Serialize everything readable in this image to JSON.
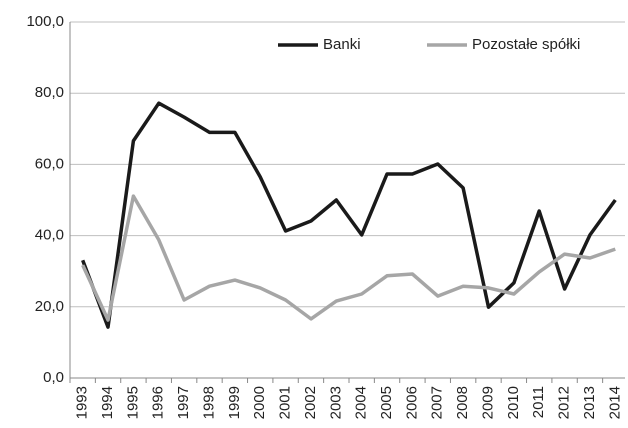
{
  "chart_data": {
    "type": "line",
    "categories": [
      "1993",
      "1994",
      "1995",
      "1996",
      "1997",
      "1998",
      "1999",
      "2000",
      "2001",
      "2002",
      "2003",
      "2004",
      "2005",
      "2006",
      "2007",
      "2008",
      "2009",
      "2010",
      "2011",
      "2012",
      "2013",
      "2014"
    ],
    "series": [
      {
        "name": "Banki",
        "color": "#1a1a1a",
        "values": [
          33.1,
          14.3,
          66.6,
          77.2,
          73.3,
          69.0,
          69.0,
          56.5,
          41.3,
          44.1,
          50.0,
          40.2,
          57.3,
          57.3,
          60.1,
          53.4,
          19.9,
          26.7,
          46.9,
          25.0,
          40.2,
          50.0
        ]
      },
      {
        "name": "Pozostałe spółki",
        "color": "#a6a6a6",
        "values": [
          31.7,
          16.3,
          51.1,
          38.8,
          21.9,
          25.8,
          27.5,
          25.3,
          21.9,
          16.6,
          21.6,
          23.6,
          28.7,
          29.2,
          23.0,
          25.8,
          25.3,
          23.6,
          29.8,
          34.8,
          33.7,
          36.2
        ]
      }
    ],
    "ylim": [
      0,
      100
    ],
    "yticks": [
      {
        "value": 0,
        "label": "0,0"
      },
      {
        "value": 20,
        "label": "20,0"
      },
      {
        "value": 40,
        "label": "40,0"
      },
      {
        "value": 60,
        "label": "60,0"
      },
      {
        "value": 80,
        "label": "80,0"
      },
      {
        "value": 100,
        "label": "100,0"
      }
    ],
    "grid": true,
    "legend": "top-right"
  }
}
